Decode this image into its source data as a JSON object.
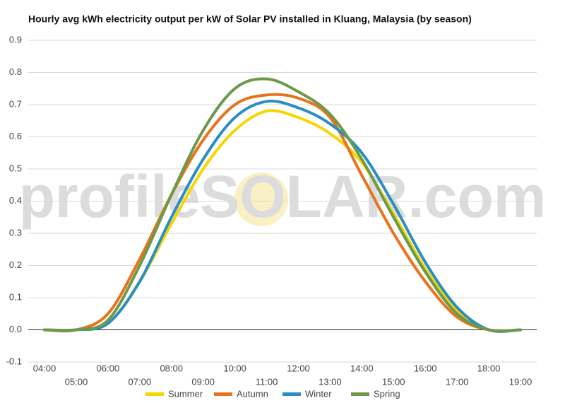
{
  "chart_data": {
    "type": "line",
    "title": "Hourly avg kWh electricity output per kW of Solar PV installed in Kluang, Malaysia (by season)",
    "watermark": "profileSOLAR.com",
    "categories": [
      "04:00",
      "05:00",
      "06:00",
      "07:00",
      "08:00",
      "09:00",
      "10:00",
      "11:00",
      "12:00",
      "13:00",
      "14:00",
      "15:00",
      "16:00",
      "17:00",
      "18:00",
      "19:00"
    ],
    "series": [
      {
        "name": "Summer",
        "color": "#f7d600",
        "values": [
          0,
          0,
          0.02,
          0.15,
          0.33,
          0.5,
          0.62,
          0.68,
          0.66,
          0.61,
          0.52,
          0.36,
          0.19,
          0.06,
          0,
          0
        ]
      },
      {
        "name": "Autumn",
        "color": "#e8731f",
        "values": [
          0,
          0,
          0.05,
          0.22,
          0.42,
          0.59,
          0.7,
          0.73,
          0.72,
          0.66,
          0.48,
          0.3,
          0.15,
          0.04,
          0,
          0
        ]
      },
      {
        "name": "Winter",
        "color": "#2a8ec2",
        "values": [
          0,
          0,
          0.02,
          0.15,
          0.35,
          0.53,
          0.66,
          0.71,
          0.69,
          0.64,
          0.55,
          0.39,
          0.21,
          0.07,
          0,
          0
        ]
      },
      {
        "name": "Spring",
        "color": "#6b9a4a",
        "values": [
          0,
          0,
          0.03,
          0.2,
          0.42,
          0.62,
          0.75,
          0.78,
          0.74,
          0.67,
          0.53,
          0.35,
          0.18,
          0.05,
          0,
          0
        ]
      }
    ],
    "ylim": [
      -0.1,
      0.9
    ],
    "yticks": [
      -0.1,
      {
        "value": 0,
        "label": "0.0"
      },
      0.1,
      0.2,
      0.3,
      0.4,
      0.5,
      0.6,
      0.7,
      0.8,
      0.9
    ],
    "grid": true,
    "legend": "bottom"
  }
}
